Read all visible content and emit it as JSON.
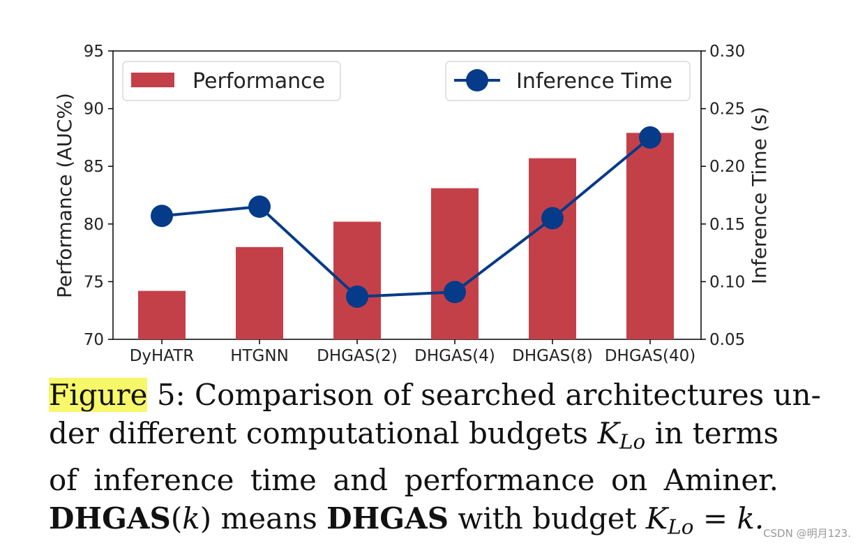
{
  "chart_data": {
    "type": "bar+line",
    "categories": [
      "DyHATR",
      "HTGNN",
      "DHGAS(2)",
      "DHGAS(4)",
      "DHGAS(8)",
      "DHGAS(40)"
    ],
    "series": [
      {
        "name": "Performance",
        "type": "bar",
        "axis": "left",
        "color": "#c44049",
        "values": [
          74.2,
          78.0,
          80.2,
          83.1,
          85.7,
          87.9
        ]
      },
      {
        "name": "Inference Time",
        "type": "line",
        "axis": "right",
        "color": "#053b88",
        "values": [
          0.157,
          0.165,
          0.087,
          0.091,
          0.155,
          0.225
        ]
      }
    ],
    "ylabel": "Performance (AUC%)",
    "ylim": [
      70,
      95
    ],
    "yticks": [
      70,
      75,
      80,
      85,
      90,
      95
    ],
    "y2label": "Inference Time (s)",
    "y2lim": [
      0.05,
      0.3
    ],
    "y2ticks": [
      "0.05",
      "0.10",
      "0.15",
      "0.20",
      "0.25",
      "0.30"
    ],
    "legend": {
      "left_entry": "Performance",
      "right_entry": "Inference Time",
      "placement": "top"
    }
  },
  "caption": {
    "figure_word": "Figure",
    "l1_rest": "5: Comparison of searched architectures un-",
    "l2_a": "der different computational budgets",
    "l2_k": "K",
    "l2_sub": "Lo",
    "l2_b": "in terms",
    "l3": "of inference time and performance on Aminer.",
    "l4_bold1": "DHGAS",
    "l4_paren_open": "(",
    "l4_k": "k",
    "l4_paren_close": ")",
    "l4_mid": "means",
    "l4_bold2": "DHGAS",
    "l4_with": "with budget",
    "l4_K": "K",
    "l4_sub": "Lo",
    "l4_eq": "=",
    "l4_end": "k."
  },
  "watermark": "CSDN @明月123."
}
